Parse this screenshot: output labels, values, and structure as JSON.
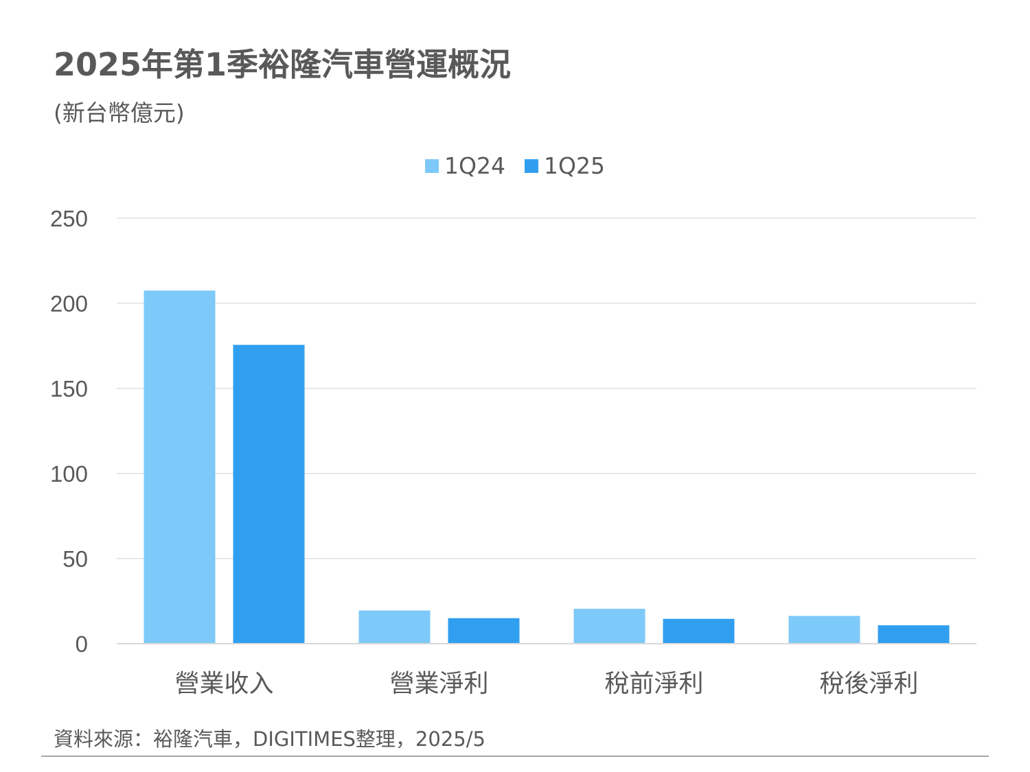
{
  "header": {
    "title": "2025年第1季裕隆汽車營運概況",
    "subtitle": "(新台幣億元)"
  },
  "footer": {
    "source": "資料來源：裕隆汽車，DIGITIMES整理，2025/5"
  },
  "chart_data": {
    "type": "bar",
    "title": "2025年第1季裕隆汽車營運概況",
    "subtitle": "(新台幣億元)",
    "categories": [
      "營業收入",
      "營業淨利",
      "稅前淨利",
      "稅後淨利"
    ],
    "series": [
      {
        "name": "1Q24",
        "color": "#7dc9f9",
        "values": [
          207.5,
          19.5,
          20.5,
          16.3
        ]
      },
      {
        "name": "1Q25",
        "color": "#319ff0",
        "values": [
          175.6,
          15.0,
          14.6,
          10.8
        ]
      }
    ],
    "ylim": [
      0,
      250
    ],
    "yticks": [
      0,
      50,
      100,
      150,
      200,
      250
    ],
    "grid": true,
    "legend": "top-center"
  }
}
